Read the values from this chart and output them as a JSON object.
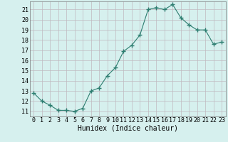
{
  "x": [
    0,
    1,
    2,
    3,
    4,
    5,
    6,
    7,
    8,
    9,
    10,
    11,
    12,
    13,
    14,
    15,
    16,
    17,
    18,
    19,
    20,
    21,
    22,
    23
  ],
  "y": [
    12.8,
    12.0,
    11.6,
    11.1,
    11.1,
    11.0,
    11.3,
    13.0,
    13.3,
    14.5,
    15.3,
    16.9,
    17.5,
    18.5,
    21.0,
    21.2,
    21.0,
    21.5,
    20.2,
    19.5,
    19.0,
    19.0,
    17.6,
    17.8
  ],
  "xlabel": "Humidex (Indice chaleur)",
  "bg_color": "#d6f0ee",
  "grid_color": "#c0b8c0",
  "line_color": "#2d7d70",
  "marker_color": "#2d7d70",
  "xlim": [
    -0.5,
    23.5
  ],
  "ylim": [
    10.5,
    21.8
  ],
  "yticks": [
    11,
    12,
    13,
    14,
    15,
    16,
    17,
    18,
    19,
    20,
    21
  ],
  "xticks": [
    0,
    1,
    2,
    3,
    4,
    5,
    6,
    7,
    8,
    9,
    10,
    11,
    12,
    13,
    14,
    15,
    16,
    17,
    18,
    19,
    20,
    21,
    22,
    23
  ],
  "xlabel_fontsize": 7,
  "tick_fontsize": 6
}
